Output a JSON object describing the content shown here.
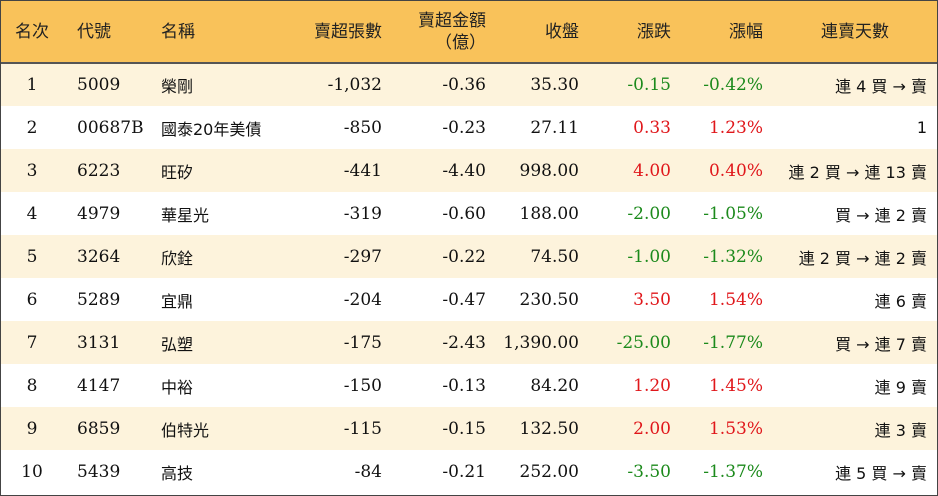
{
  "headers": {
    "rank": "名次",
    "code": "代號",
    "name": "名稱",
    "lots": "賣超張數",
    "amount_line1": "賣超金額",
    "amount_line2": "（億）",
    "close": "收盤",
    "change": "漲跌",
    "pct": "漲幅",
    "streak": "連賣天數"
  },
  "colors": {
    "header_bg": "#f9c25a",
    "odd_row_bg": "#fdf3dc",
    "up": "#e0171b",
    "down": "#1c8a1c"
  },
  "rows": [
    {
      "rank": "1",
      "code": "5009",
      "name": "榮剛",
      "lots": "-1,032",
      "amount": "-0.36",
      "close": "35.30",
      "change": "-0.15",
      "pct": "-0.42%",
      "dir": "down",
      "streak": "連 4 買 → 賣"
    },
    {
      "rank": "2",
      "code": "00687B",
      "name": "國泰20年美債",
      "lots": "-850",
      "amount": "-0.23",
      "close": "27.11",
      "change": "0.33",
      "pct": "1.23%",
      "dir": "up",
      "streak": "1"
    },
    {
      "rank": "3",
      "code": "6223",
      "name": "旺矽",
      "lots": "-441",
      "amount": "-4.40",
      "close": "998.00",
      "change": "4.00",
      "pct": "0.40%",
      "dir": "up",
      "streak": "連 2 買 → 連 13 賣"
    },
    {
      "rank": "4",
      "code": "4979",
      "name": "華星光",
      "lots": "-319",
      "amount": "-0.60",
      "close": "188.00",
      "change": "-2.00",
      "pct": "-1.05%",
      "dir": "down",
      "streak": "買 → 連 2 賣"
    },
    {
      "rank": "5",
      "code": "3264",
      "name": "欣銓",
      "lots": "-297",
      "amount": "-0.22",
      "close": "74.50",
      "change": "-1.00",
      "pct": "-1.32%",
      "dir": "down",
      "streak": "連 2 買 → 連 2 賣"
    },
    {
      "rank": "6",
      "code": "5289",
      "name": "宜鼎",
      "lots": "-204",
      "amount": "-0.47",
      "close": "230.50",
      "change": "3.50",
      "pct": "1.54%",
      "dir": "up",
      "streak": "連 6 賣"
    },
    {
      "rank": "7",
      "code": "3131",
      "name": "弘塑",
      "lots": "-175",
      "amount": "-2.43",
      "close": "1,390.00",
      "change": "-25.00",
      "pct": "-1.77%",
      "dir": "down",
      "streak": "買 → 連 7 賣"
    },
    {
      "rank": "8",
      "code": "4147",
      "name": "中裕",
      "lots": "-150",
      "amount": "-0.13",
      "close": "84.20",
      "change": "1.20",
      "pct": "1.45%",
      "dir": "up",
      "streak": "連 9 賣"
    },
    {
      "rank": "9",
      "code": "6859",
      "name": "伯特光",
      "lots": "-115",
      "amount": "-0.15",
      "close": "132.50",
      "change": "2.00",
      "pct": "1.53%",
      "dir": "up",
      "streak": "連 3 賣"
    },
    {
      "rank": "10",
      "code": "5439",
      "name": "高技",
      "lots": "-84",
      "amount": "-0.21",
      "close": "252.00",
      "change": "-3.50",
      "pct": "-1.37%",
      "dir": "down",
      "streak": "連 5 買 → 賣"
    }
  ]
}
